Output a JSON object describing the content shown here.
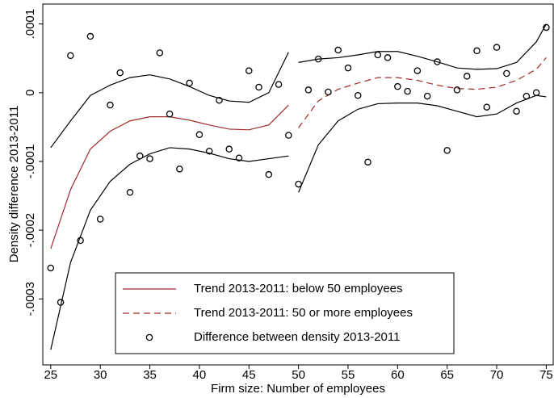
{
  "chart_data": {
    "type": "line",
    "xlabel": "Firm size: Number of employees",
    "ylabel": "Density difference 2013-2011",
    "xlim": [
      24.2,
      75.7
    ],
    "ylim": [
      -0.000396,
      0.000129
    ],
    "xticks": [
      25,
      30,
      35,
      40,
      45,
      50,
      55,
      60,
      65,
      70,
      75
    ],
    "yticks": [
      {
        "value": -0.0003,
        "label": "-.0003"
      },
      {
        "value": -0.0002,
        "label": "-.0002"
      },
      {
        "value": -0.0001,
        "label": "-.0001"
      },
      {
        "value": 0,
        "label": "0"
      },
      {
        "value": 0.0001,
        "label": ".0001"
      }
    ],
    "series": [
      {
        "name": "Trend 2013-2011: below 50 employees",
        "color": "#a52a2a",
        "style": "solid",
        "x": [
          25,
          27,
          29,
          31,
          33,
          35,
          37,
          39,
          41,
          43,
          45,
          47,
          49
        ],
        "values": [
          -0.000227,
          -0.000141,
          -8.2e-05,
          -5.6e-05,
          -4.1e-05,
          -3.5e-05,
          -3.5e-05,
          -4e-05,
          -4.7e-05,
          -5.3e-05,
          -5.4e-05,
          -4.7e-05,
          -1.8e-05
        ]
      },
      {
        "name": "Trend 2013-2011: 50 or more employees",
        "color": "#a52a2a",
        "style": "dashed",
        "x": [
          50,
          52,
          54,
          56,
          58,
          60,
          62,
          64,
          66,
          68,
          70,
          72,
          74,
          75
        ],
        "values": [
          -5.1e-05,
          -1.2e-05,
          5e-06,
          1.4e-05,
          2.2e-05,
          2.2e-05,
          1.8e-05,
          1.1e-05,
          6e-06,
          5e-06,
          8e-06,
          1.8e-05,
          3.4e-05,
          5.1e-05
        ]
      },
      {
        "name": "Difference between density 2013-2011",
        "color": "#000000",
        "style": "marker",
        "x": [
          25,
          26,
          27,
          28,
          29,
          30,
          31,
          32,
          33,
          34,
          35,
          36,
          37,
          38,
          39,
          40,
          41,
          42,
          43,
          44,
          45,
          46,
          47,
          48,
          49,
          50,
          51,
          52,
          53,
          54,
          55,
          56,
          57,
          58,
          59,
          60,
          61,
          62,
          63,
          64,
          65,
          66,
          67,
          68,
          69,
          70,
          71,
          72,
          73,
          74,
          75
        ],
        "values": [
          -0.000255,
          -0.000305,
          5.4e-05,
          -0.000215,
          8.2e-05,
          -0.000184,
          -1.8e-05,
          2.9e-05,
          -0.000145,
          -9.2e-05,
          -9.6e-05,
          5.8e-05,
          -3.1e-05,
          -0.000111,
          1.4e-05,
          -6.1e-05,
          -8.5e-05,
          -1.1e-05,
          -8.2e-05,
          -9.5e-05,
          3.2e-05,
          8e-06,
          -0.000119,
          1.2e-05,
          -6.2e-05,
          -0.000133,
          4e-06,
          4.9e-05,
          1e-06,
          6.2e-05,
          3.6e-05,
          -4e-06,
          -0.000101,
          5.5e-05,
          5.1e-05,
          9e-06,
          2e-06,
          3.2e-05,
          -5e-06,
          4.5e-05,
          -8.4e-05,
          4e-06,
          2.4e-05,
          6.1e-05,
          -2.1e-05,
          6.6e-05,
          2.8e-05,
          -2.7e-05,
          -5e-06,
          0,
          9.5e-05
        ]
      }
    ],
    "bands": [
      {
        "color": "#000000",
        "x": [
          25,
          27,
          29,
          31,
          33,
          35,
          37,
          39,
          41,
          43,
          45,
          47,
          49
        ],
        "upper": [
          -8e-05,
          -4.1e-05,
          -4e-06,
          1.1e-05,
          2.2e-05,
          2.6e-05,
          2e-05,
          9e-06,
          -4e-06,
          -1.2e-05,
          -1.4e-05,
          0,
          5.9e-05
        ],
        "lower": [
          -0.000374,
          -0.000247,
          -0.000171,
          -0.000129,
          -0.000104,
          -8.9e-05,
          -8e-05,
          -8.2e-05,
          -8.8e-05,
          -9.6e-05,
          -0.0001,
          -9.6e-05,
          -9.2e-05
        ]
      },
      {
        "color": "#000000",
        "x": [
          50,
          52,
          54,
          56,
          58,
          60,
          62,
          64,
          66,
          68,
          70,
          72,
          74,
          75
        ],
        "upper": [
          4.4e-05,
          4.9e-05,
          5.1e-05,
          5.5e-05,
          6e-05,
          6e-05,
          5.3e-05,
          4.5e-05,
          3.6e-05,
          3.4e-05,
          3.5e-05,
          4.4e-05,
          7.4e-05,
          0.0001
        ],
        "lower": [
          -0.000145,
          -7.6e-05,
          -4.1e-05,
          -2.4e-05,
          -1.6e-05,
          -1.5e-05,
          -1.5e-05,
          -1.9e-05,
          -2.7e-05,
          -3.5e-05,
          -3.1e-05,
          -1.5e-05,
          -4e-06,
          -6e-06
        ]
      }
    ]
  }
}
